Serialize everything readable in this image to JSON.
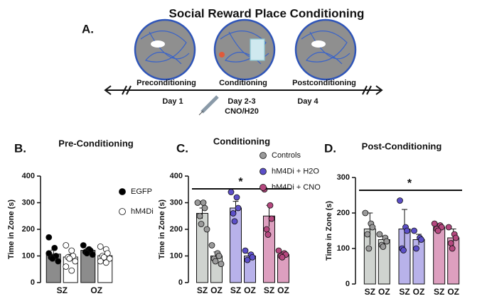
{
  "figure": {
    "title": "Social Reward Place Conditioning",
    "panel_label": "A.",
    "stages": [
      "Preconditioning",
      "Conditioning",
      "Postconditioning"
    ],
    "days": [
      "Day 1",
      "Day 2-3",
      "Day 4"
    ],
    "treatment": "CNO/H20"
  },
  "chart_data": [
    {
      "type": "bar",
      "panel_label": "B.",
      "title": "Pre-Conditioning",
      "ylabel": "Time in Zone (s)",
      "grouping": "by_category",
      "categories": [
        "SZ",
        "OZ"
      ],
      "ylim": [
        0,
        400
      ],
      "yticks": [
        0,
        100,
        200,
        300,
        400
      ],
      "legend": "right",
      "series": [
        {
          "name": "EGFP",
          "color": "#8c8c8c",
          "point_color": "#000000",
          "values": [
            107,
            121
          ],
          "errors": [
            15,
            8
          ],
          "points": [
            [
              170,
              130,
              100,
              95,
              90,
              80,
              110
            ],
            [
              140,
              125,
              120,
              115,
              110,
              105
            ]
          ]
        },
        {
          "name": "hM4Di",
          "color": "#ffffff",
          "point_color": "#ffffff",
          "values": [
            96,
            101
          ],
          "errors": [
            10,
            7
          ],
          "points": [
            [
              140,
              120,
              100,
              95,
              90,
              80,
              60,
              45
            ],
            [
              135,
              125,
              110,
              100,
              95,
              90,
              80,
              75
            ]
          ]
        }
      ]
    },
    {
      "type": "bar",
      "panel_label": "C.",
      "title": "Conditioning",
      "ylabel": "Time in Zone (s)",
      "grouping": "by_series",
      "categories": [
        "SZ",
        "OZ"
      ],
      "ylim": [
        0,
        400
      ],
      "yticks": [
        0,
        100,
        200,
        300,
        400
      ],
      "legend": "top",
      "annotation": "*",
      "series": [
        {
          "name": "Controls",
          "color": "#cfd3cf",
          "point_color": "#9a9a9a",
          "values": [
            260,
            100
          ],
          "errors": [
            20,
            15
          ],
          "points": [
            [
              300,
              300,
              280,
              250,
              220,
              200
            ],
            [
              140,
              110,
              100,
              90,
              80,
              70
            ]
          ]
        },
        {
          "name": "hM4Di + H2O",
          "color": "#b8b2ea",
          "point_color": "#5c4fc8",
          "values": [
            280,
            100
          ],
          "errors": [
            25,
            10
          ],
          "points": [
            [
              340,
              320,
              280,
              260,
              230
            ],
            [
              120,
              105,
              95,
              85
            ]
          ]
        },
        {
          "name": "hM4Di + CNO",
          "color": "#dd9fbf",
          "point_color": "#b5487f",
          "values": [
            250,
            105
          ],
          "errors": [
            40,
            10
          ],
          "points": [
            [
              350,
              290,
              240,
              200,
              180
            ],
            [
              120,
              110,
              105,
              100,
              95
            ]
          ]
        }
      ]
    },
    {
      "type": "bar",
      "panel_label": "D.",
      "title": "Post-Conditioning",
      "ylabel": "Time in Zone (s)",
      "grouping": "by_series",
      "categories": [
        "SZ",
        "OZ"
      ],
      "ylim": [
        0,
        300
      ],
      "yticks": [
        0,
        100,
        200,
        300
      ],
      "annotation": "*",
      "series": [
        {
          "color": "#cfd3cf",
          "point_color": "#9a9a9a",
          "values": [
            155,
            125
          ],
          "errors": [
            45,
            10
          ],
          "points": [
            [
              200,
              170,
              160,
              140,
              100
            ],
            [
              140,
              130,
              120,
              110,
              105
            ]
          ]
        },
        {
          "color": "#b8b2ea",
          "point_color": "#5c4fc8",
          "values": [
            155,
            125
          ],
          "errors": [
            55,
            15
          ],
          "points": [
            [
              235,
              160,
              150,
              100,
              95
            ],
            [
              150,
              130,
              125,
              100
            ]
          ]
        },
        {
          "color": "#dd9fbf",
          "point_color": "#b5487f",
          "values": [
            160,
            130
          ],
          "errors": [
            10,
            25
          ],
          "points": [
            [
              170,
              165,
              160,
              155,
              150
            ],
            [
              160,
              140,
              130,
              115,
              100
            ]
          ]
        }
      ]
    }
  ]
}
